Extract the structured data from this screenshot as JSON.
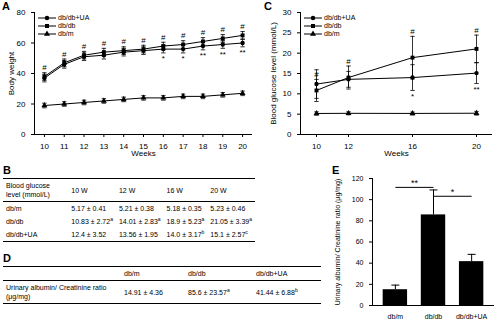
{
  "chart_data": [
    {
      "type": "line",
      "title": "A",
      "xlabel": "Weeks",
      "ylabel": "Body weight",
      "x": [
        10,
        11,
        12,
        13,
        14,
        15,
        16,
        17,
        18,
        19,
        20
      ],
      "xlim": [
        9.5,
        20.5
      ],
      "xticks": [
        10,
        11,
        12,
        13,
        14,
        15,
        16,
        17,
        18,
        19,
        20
      ],
      "ylim": [
        0,
        80
      ],
      "yticks": [
        0,
        20,
        40,
        60,
        80
      ],
      "legend": "top-left",
      "series": [
        {
          "name": "db/db+UA",
          "color": "#000000",
          "marker": "circle",
          "values": [
            37,
            46,
            51,
            52,
            54,
            55,
            56,
            56,
            58,
            59,
            60
          ],
          "errors": [
            2.5,
            2.5,
            2.5,
            2.5,
            2.5,
            2.5,
            2.5,
            2.5,
            2.5,
            2.5,
            2.5
          ]
        },
        {
          "name": "db/db",
          "color": "#000000",
          "marker": "square",
          "values": [
            38,
            47,
            52,
            54,
            55,
            56,
            58,
            59,
            61,
            63,
            65
          ],
          "errors": [
            2.5,
            2.5,
            2.5,
            2.5,
            2.5,
            2.5,
            2.5,
            2.5,
            2.5,
            2.5,
            2.5
          ]
        },
        {
          "name": "db/m",
          "color": "#000000",
          "marker": "triangle",
          "values": [
            19,
            20,
            21,
            22,
            23,
            24,
            24,
            25,
            25,
            26,
            27
          ],
          "errors": [
            1.5,
            1.5,
            1.5,
            1.5,
            1.5,
            1.5,
            1.5,
            1.5,
            1.5,
            1.5,
            1.5
          ]
        }
      ],
      "annotations": [
        {
          "x": 10,
          "text": "#",
          "series": "db/db"
        },
        {
          "x": 11,
          "text": "#",
          "series": "db/db"
        },
        {
          "x": 12,
          "text": "#",
          "series": "db/db"
        },
        {
          "x": 13,
          "text": "#",
          "series": "db/db"
        },
        {
          "x": 14,
          "text": "#",
          "series": "db/db"
        },
        {
          "x": 15,
          "text": "#",
          "series": "db/db"
        },
        {
          "x": 16,
          "text": "#",
          "series": "db/db"
        },
        {
          "x": 17,
          "text": "#",
          "series": "db/db"
        },
        {
          "x": 18,
          "text": "#",
          "series": "db/db"
        },
        {
          "x": 19,
          "text": "#",
          "series": "db/db"
        },
        {
          "x": 20,
          "text": "#",
          "series": "db/db"
        },
        {
          "x": 16,
          "text": "*",
          "series": "db/db+UA"
        },
        {
          "x": 17,
          "text": "*",
          "series": "db/db+UA"
        },
        {
          "x": 18,
          "text": "**",
          "series": "db/db+UA"
        },
        {
          "x": 19,
          "text": "**",
          "series": "db/db+UA"
        },
        {
          "x": 20,
          "text": "**",
          "series": "db/db+UA"
        }
      ]
    },
    {
      "type": "line",
      "title": "C",
      "xlabel": "Weeks",
      "ylabel": "Blood glucose level (mmol/L)",
      "x": [
        10,
        12,
        16,
        20
      ],
      "xlim": [
        9,
        21
      ],
      "xticks": [
        10,
        12,
        16,
        20
      ],
      "ylim": [
        0,
        30
      ],
      "yticks": [
        0,
        5,
        10,
        15,
        20,
        25,
        30
      ],
      "legend": "top-left",
      "series": [
        {
          "name": "db/db+UA",
          "color": "#000000",
          "marker": "circle",
          "values": [
            12.4,
            13.56,
            14.0,
            15.1
          ],
          "errors": [
            3.52,
            1.95,
            3.17,
            2.57
          ]
        },
        {
          "name": "db/db",
          "color": "#000000",
          "marker": "square",
          "values": [
            10.83,
            14.01,
            18.9,
            21.05
          ],
          "errors": [
            2.72,
            2.83,
            5.23,
            3.39
          ]
        },
        {
          "name": "db/m",
          "color": "#000000",
          "marker": "triangle",
          "values": [
            5.17,
            5.21,
            5.18,
            5.23
          ],
          "errors": [
            0.41,
            0.38,
            0.35,
            0.46
          ]
        }
      ],
      "annotations": [
        {
          "x": 10,
          "text": "#",
          "series": "db/db"
        },
        {
          "x": 12,
          "text": "#",
          "series": "db/db"
        },
        {
          "x": 16,
          "text": "#",
          "series": "db/db"
        },
        {
          "x": 20,
          "text": "#",
          "series": "db/db"
        },
        {
          "x": 16,
          "text": "*",
          "series": "db/db+UA"
        },
        {
          "x": 20,
          "text": "**",
          "series": "db/db+UA"
        }
      ]
    },
    {
      "type": "bar",
      "title": "E",
      "ylabel": "Urinary albumin/ Creatinine ratio (μg/mg)",
      "categories": [
        "db/m",
        "db/db",
        "db/db+UA"
      ],
      "values": [
        14.91,
        85.6,
        41.44
      ],
      "errors": [
        4.36,
        23.57,
        6.88
      ],
      "color": "#000000",
      "ylim": [
        0,
        120
      ],
      "yticks": [
        0,
        20,
        40,
        60,
        80,
        100,
        120
      ],
      "annotations": [
        {
          "from": "db/m",
          "to": "db/db",
          "text": "**"
        },
        {
          "from": "db/db",
          "to": "db/db+UA",
          "text": "*"
        }
      ]
    }
  ],
  "tables": [
    {
      "panel": "B",
      "columns": [
        "Blood glucose level (mmol/L)",
        "10 W",
        "12 W",
        "16 W",
        "20 W"
      ],
      "rows": [
        [
          "db/m",
          "5.17 ± 0.41",
          "5.21 ± 0.38",
          "5.18 ± 0.35",
          "5.23 ± 0.46"
        ],
        [
          "db/db",
          {
            "text": "10.83 ± 2.72",
            "sup": "a"
          },
          {
            "text": "14.01 ± 2.83",
            "sup": "a"
          },
          {
            "text": "18.9 ± 5.23",
            "sup": "a"
          },
          {
            "text": "21.05 ± 3.39",
            "sup": "a"
          }
        ],
        [
          "db/db+UA",
          "12.4 ± 3.52",
          "13.56 ± 1.95",
          {
            "text": "14.0 ± 3.17",
            "sup": "b"
          },
          {
            "text": "15.1 ± 2.57",
            "sup": "c"
          }
        ]
      ]
    },
    {
      "panel": "D",
      "columns": [
        null,
        "db/m",
        "db/db",
        "db/db+UA"
      ],
      "rows": [
        [
          "Urinary albumin/ Creatinine ratio (μg/mg)",
          "14.91 ± 4.36",
          {
            "text": "85.6 ± 23.57",
            "sup": "a"
          },
          {
            "text": "41.44 ± 6.88",
            "sup": "b"
          }
        ]
      ]
    }
  ]
}
